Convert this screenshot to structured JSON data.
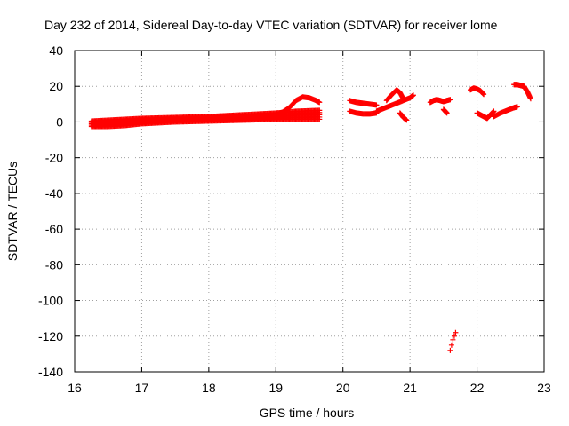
{
  "chart_data": {
    "type": "scatter",
    "title": "Day 232 of 2014, Sidereal Day-to-day VTEC variation (SDTVAR) for receiver lome",
    "xlabel": "GPS time / hours",
    "ylabel": "SDTVAR / TECUs",
    "xlim": [
      16,
      23
    ],
    "ylim": [
      -140,
      40
    ],
    "xticks": [
      16,
      17,
      18,
      19,
      20,
      21,
      22,
      23
    ],
    "yticks": [
      -140,
      -120,
      -100,
      -80,
      -60,
      -40,
      -20,
      0,
      20,
      40
    ],
    "grid": true,
    "marker": "plus",
    "color": "#ff0000",
    "series": [
      {
        "name": "main band (lower edge)",
        "x": [
          16.25,
          16.5,
          16.75,
          17.0,
          17.5,
          18.0,
          18.5,
          19.0,
          19.3,
          19.65
        ],
        "y": [
          -2.5,
          -2.5,
          -2.0,
          -1.0,
          0.0,
          0.5,
          1.0,
          1.5,
          1.5,
          1.5
        ]
      },
      {
        "name": "main band (upper edge)",
        "x": [
          16.25,
          16.5,
          16.75,
          17.0,
          17.5,
          18.0,
          18.5,
          19.0,
          19.3,
          19.65
        ],
        "y": [
          0.5,
          1.0,
          1.5,
          2.0,
          2.5,
          3.0,
          4.0,
          5.0,
          6.0,
          6.5
        ]
      },
      {
        "name": "19h arc",
        "x": [
          19.0,
          19.1,
          19.2,
          19.3,
          19.4,
          19.5,
          19.6,
          19.65
        ],
        "y": [
          4.0,
          5.5,
          8.0,
          12.0,
          14.0,
          13.5,
          12.0,
          11.0
        ]
      },
      {
        "name": "segment 20.1-20.5h (upper)",
        "x": [
          20.1,
          20.2,
          20.3,
          20.4,
          20.5
        ],
        "y": [
          12.0,
          11.0,
          10.5,
          10.0,
          9.5
        ]
      },
      {
        "name": "segment 20.1-20.5h (lower)",
        "x": [
          20.1,
          20.2,
          20.3,
          20.4,
          20.5
        ],
        "y": [
          6.0,
          5.0,
          4.5,
          4.5,
          5.0
        ]
      },
      {
        "name": "segment 20.5-21.05h (rising)",
        "x": [
          20.5,
          20.6,
          20.7,
          20.8,
          20.9,
          21.0,
          21.05
        ],
        "y": [
          6.0,
          7.5,
          9.0,
          10.5,
          12.0,
          13.5,
          15.0
        ]
      },
      {
        "name": "arc near 20.8h",
        "x": [
          20.65,
          20.72,
          20.8,
          20.85,
          20.9
        ],
        "y": [
          12.0,
          15.0,
          18.0,
          16.5,
          13.0
        ]
      },
      {
        "name": "drop near 20.9h",
        "x": [
          20.85,
          20.9,
          20.95
        ],
        "y": [
          5.0,
          2.5,
          1.0
        ]
      },
      {
        "name": "segment 21.3-21.6h",
        "x": [
          21.3,
          21.35,
          21.4,
          21.45,
          21.5,
          21.55,
          21.6
        ],
        "y": [
          11.0,
          12.0,
          12.5,
          12.0,
          11.5,
          12.0,
          12.5
        ]
      },
      {
        "name": "tail near 21.55h",
        "x": [
          21.5,
          21.55
        ],
        "y": [
          7.0,
          5.0
        ]
      },
      {
        "name": "arc 21.9-22.1h",
        "x": [
          21.9,
          21.95,
          22.0,
          22.05,
          22.1
        ],
        "y": [
          18.0,
          19.0,
          18.5,
          17.5,
          15.5
        ]
      },
      {
        "name": "segment 22.0-22.25h",
        "x": [
          22.0,
          22.05,
          22.1,
          22.15,
          22.2,
          22.25
        ],
        "y": [
          5.0,
          4.0,
          3.0,
          2.0,
          4.0,
          6.0
        ]
      },
      {
        "name": "segment 22.25-22.6h (rising)",
        "x": [
          22.25,
          22.35,
          22.45,
          22.55,
          22.6
        ],
        "y": [
          3.0,
          5.0,
          6.5,
          8.0,
          8.5
        ]
      },
      {
        "name": "segment 22.55-22.8h (upper)",
        "x": [
          22.55,
          22.6,
          22.65,
          22.7,
          22.75,
          22.8
        ],
        "y": [
          21.0,
          21.0,
          20.5,
          20.0,
          17.0,
          13.0
        ]
      },
      {
        "name": "outliers near 21.6h",
        "x": [
          21.6,
          21.62,
          21.64,
          21.66,
          21.68
        ],
        "y": [
          -128.0,
          -125.0,
          -122.0,
          -120.0,
          -118.0
        ]
      }
    ]
  }
}
